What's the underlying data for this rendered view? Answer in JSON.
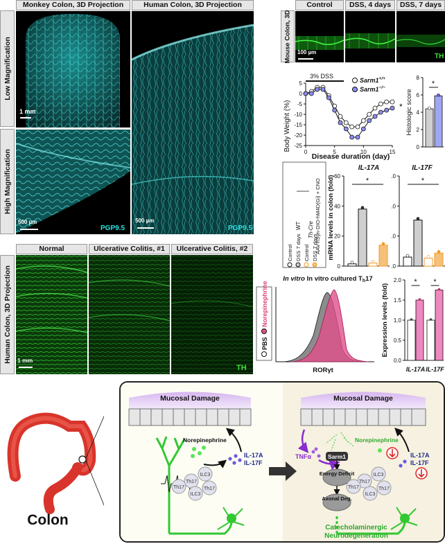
{
  "panelA": {
    "monkey_title": "Monkey Colon, 3D Projection",
    "human_title": "Human Colon, 3D Projection",
    "row_low": "Low Magnification",
    "row_high": "High Magnification",
    "scale_1mm": "1 mm",
    "scale_500a": "500 µm",
    "scale_500b": "500 µm",
    "stain_a": "PGP9.5",
    "stain_b": "PGP9.5"
  },
  "panelMouse": {
    "side": "Mouse Colon, 3D",
    "cols": [
      "Control",
      "DSS, 4 days",
      "DSS, 7 days"
    ],
    "scale": "100 µm",
    "stain": "TH"
  },
  "panelUC": {
    "side": "Human Colon, 3D Projection",
    "cols": [
      "Normal",
      "Ulcerative Colitis, #1",
      "Ulcerative Colitis, #2"
    ],
    "scale": "1 mm",
    "stain": "TH"
  },
  "bodyweight": {
    "dss_label": "3% DSS",
    "ylabel": "Body Weight (%)",
    "xlabel": "Disease duration (day)",
    "legend_wt": "Sarm1",
    "legend_wt_sup": "+/+",
    "legend_ko": "Sarm1",
    "legend_ko_sup": "−/−",
    "yticks": [
      "5",
      "0",
      "-5",
      "-10",
      "-15",
      "-20",
      "-25"
    ],
    "xticks": [
      "0",
      "5",
      "10",
      "15"
    ],
    "sig": "*"
  },
  "histo": {
    "ylabel": "Histologic score",
    "yticks": [
      "0",
      "2",
      "4",
      "6",
      "8"
    ],
    "sig": "*"
  },
  "il17": {
    "ylabel": "mRNA levels in colon (fold)",
    "title_a": "IL-17A",
    "title_b": "IL-17F",
    "yticks_a": [
      "0",
      "20",
      "40",
      "60"
    ],
    "yticks_b": [
      "0.0",
      "3.0",
      "6.0",
      "9.0"
    ],
    "sig": "*",
    "legend_virus": "AAV-hSyn-DIO-hM4D(Gi) + CNO",
    "legend_wt": "WT",
    "legend_thcre": "Th-Cre",
    "legend_items": [
      "Control",
      "DSS 7 days",
      "Control",
      "DSS 7 days"
    ]
  },
  "flow": {
    "title": "In vitro cultured T",
    "title_sub": "h",
    "title_tail": "17",
    "legend_pbs": "PBS",
    "legend_ne": "Norepinephrine",
    "xlabel": "RORγt"
  },
  "expr": {
    "ylabel": "Expression levels (fold)",
    "yticks": [
      "0.0",
      "0.5",
      "1.0",
      "1.5",
      "2.0"
    ],
    "xlabels": [
      "IL-17A",
      "IL-17F"
    ],
    "sig": "*"
  },
  "schematic": {
    "colon_label": "Colon",
    "mucosal_left": "Mucosal Damage",
    "mucosal_right": "Mucosal Damage",
    "ne_left": "Norepinephrine",
    "ne_right": "Norepinephrine",
    "il17a_left": "IL-17A",
    "il17f_left": "IL-17F",
    "il17a_right": "IL-17A",
    "il17f_right": "IL-17F",
    "tnfa": "TNFα",
    "sarm1": "Sarm1",
    "energy": "Energy Deficit",
    "axonal": "Axonal Deg.",
    "neurodeg_line1": "Catecholaminergic",
    "neurodeg_line2": "Neurodegeneration",
    "cells": [
      "Th17",
      "Th17",
      "ILC3",
      "ILC3",
      "Th17"
    ]
  },
  "chart_data": [
    {
      "type": "line",
      "title": "",
      "xlabel": "Disease duration (day)",
      "ylabel": "Body Weight (%)",
      "xlim": [
        0,
        15
      ],
      "ylim": [
        -25,
        5
      ],
      "x": [
        0,
        1,
        2,
        3,
        4,
        5,
        6,
        7,
        8,
        9,
        10,
        11,
        12,
        13,
        14,
        15
      ],
      "series": [
        {
          "name": "Sarm1+/+",
          "values": [
            0,
            1,
            3,
            3,
            -1,
            -6,
            -11,
            -14,
            -16,
            -16,
            -13,
            -10,
            -7,
            -5,
            -4,
            -4
          ],
          "color": "#ffffff"
        },
        {
          "name": "Sarm1-/-",
          "values": [
            0,
            0,
            2,
            2,
            -2,
            -8,
            -14,
            -17,
            -21,
            -21,
            -17,
            -13,
            -11,
            -9,
            -8,
            -7
          ],
          "color": "#8c8cf0"
        }
      ]
    },
    {
      "type": "bar",
      "title": "",
      "ylabel": "Histologic score",
      "ylim": [
        0,
        8
      ],
      "categories": [
        "Sarm1+/+",
        "Sarm1-/-"
      ],
      "values": [
        4.4,
        5.9
      ]
    },
    {
      "type": "bar",
      "title": "IL-17A",
      "ylabel": "mRNA levels in colon (fold)",
      "ylim": [
        0,
        60
      ],
      "categories": [
        "WT Control",
        "WT DSS 7 days",
        "Th-Cre Control",
        "Th-Cre DSS 7 days"
      ],
      "values": [
        1.5,
        38,
        2,
        14
      ]
    },
    {
      "type": "bar",
      "title": "IL-17F",
      "ylim": [
        0,
        9
      ],
      "categories": [
        "WT Control",
        "WT DSS 7 days",
        "Th-Cre Control",
        "Th-Cre DSS 7 days"
      ],
      "values": [
        0.9,
        4.6,
        0.8,
        1.3
      ]
    },
    {
      "type": "bar",
      "title": "",
      "ylabel": "Expression levels (fold)",
      "ylim": [
        0,
        2
      ],
      "categories": [
        "IL-17A",
        "IL-17F"
      ],
      "series": [
        {
          "name": "PBS",
          "values": [
            1.0,
            1.0
          ]
        },
        {
          "name": "Norepinephrine",
          "values": [
            1.5,
            1.75
          ]
        }
      ]
    }
  ]
}
